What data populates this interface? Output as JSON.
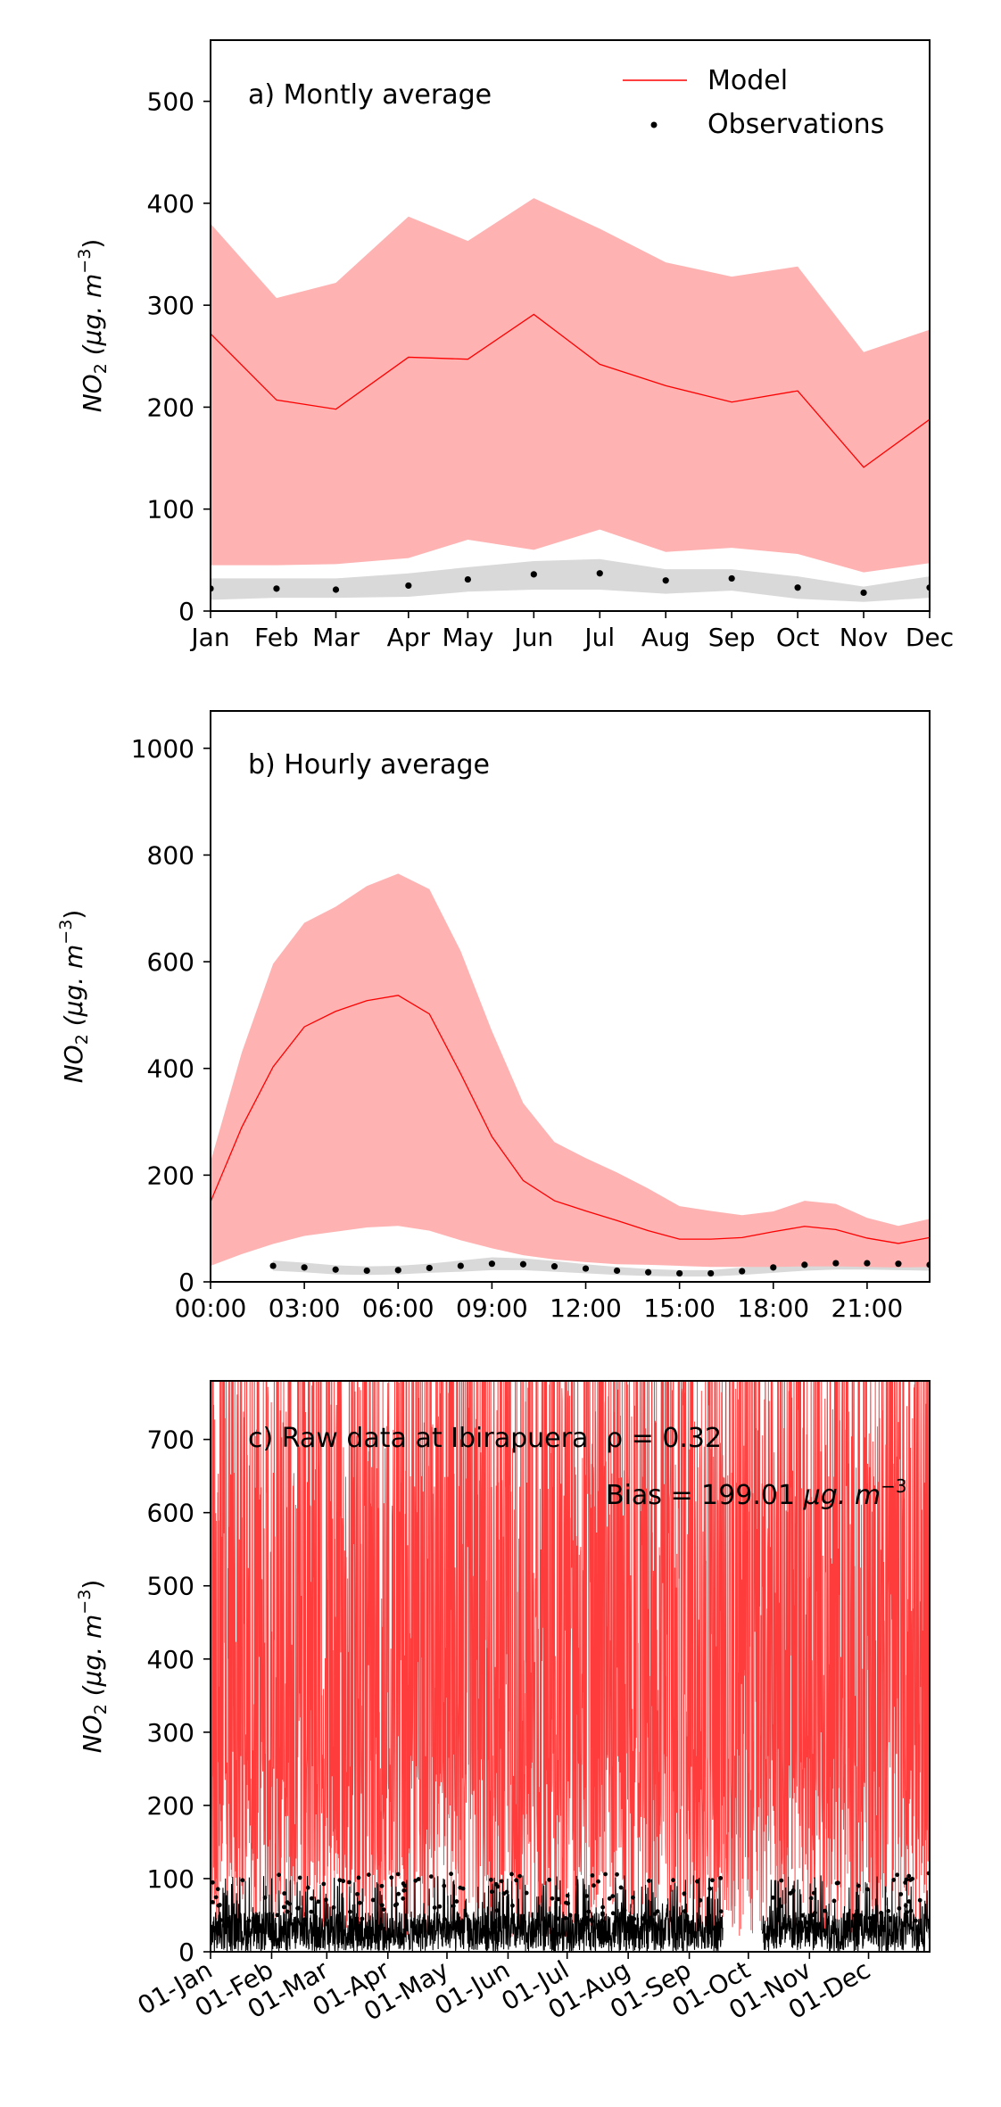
{
  "chart_data": [
    {
      "type": "area",
      "annotation": "a) Montly average",
      "ylabel_main": "NO",
      "ylabel_sub": "2",
      "ylabel_unit": " (μg. m",
      "ylabel_exp": "−3",
      "ylabel_close": ")",
      "ylim": [
        0,
        560
      ],
      "yticks": [
        0,
        100,
        200,
        300,
        400,
        500
      ],
      "categories": [
        "Jan",
        "Feb",
        "Mar",
        "Apr",
        "May",
        "Jun",
        "Jul",
        "Aug",
        "Sep",
        "Oct",
        "Nov",
        "Dec"
      ],
      "x": [
        0,
        1,
        1.9,
        3,
        3.9,
        4.9,
        5.9,
        6.9,
        7.9,
        8.9,
        9.9,
        10.9
      ],
      "xlim": [
        0,
        10.9
      ],
      "legend": {
        "placement": "top-right",
        "entries": [
          "Model",
          "Observations"
        ]
      },
      "series": [
        {
          "name": "Model",
          "values": [
            272,
            207,
            198,
            249,
            247,
            291,
            242,
            221,
            205,
            216,
            141,
            188
          ],
          "upper": [
            380,
            307,
            322,
            387,
            363,
            405,
            375,
            342,
            328,
            338,
            254,
            276
          ],
          "lower": [
            45,
            45,
            46,
            52,
            70,
            60,
            80,
            58,
            62,
            56,
            38,
            47
          ]
        },
        {
          "name": "Observations",
          "values": [
            22,
            22,
            21,
            25,
            31,
            36,
            37,
            30,
            32,
            23,
            18,
            23
          ],
          "upper": [
            32,
            32,
            32,
            37,
            43,
            49,
            51,
            41,
            41,
            34,
            24,
            34
          ],
          "lower": [
            11,
            13,
            13,
            14,
            19,
            21,
            21,
            17,
            20,
            12,
            9,
            13
          ]
        }
      ],
      "colors": {
        "model": "#ff0000",
        "model_band": "#ffb2b2",
        "obs": "#000000",
        "obs_band": "#d9d9d9"
      }
    },
    {
      "type": "area",
      "annotation": "b) Hourly average",
      "ylabel_main": "NO",
      "ylabel_sub": "2",
      "ylabel_unit": " (μg. m",
      "ylabel_exp": "−3",
      "ylabel_close": ")",
      "ylim": [
        0,
        1070
      ],
      "yticks": [
        0,
        200,
        400,
        600,
        800,
        1000
      ],
      "xlim": [
        0,
        23
      ],
      "xticks": [
        0,
        3,
        6,
        9,
        12,
        15,
        18,
        21
      ],
      "xticklabels": [
        "00:00",
        "03:00",
        "06:00",
        "09:00",
        "12:00",
        "15:00",
        "18:00",
        "21:00"
      ],
      "series": [
        {
          "name": "Model",
          "x": [
            0,
            1,
            2,
            3,
            4,
            5,
            6,
            7,
            8,
            9,
            10,
            11,
            12,
            13,
            14,
            15,
            16,
            17,
            18,
            19,
            20,
            21,
            22,
            23
          ],
          "values": [
            150,
            290,
            403,
            478,
            507,
            527,
            537,
            502,
            390,
            272,
            190,
            152,
            133,
            115,
            96,
            80,
            80,
            83,
            94,
            104,
            98,
            82,
            72,
            83
          ],
          "upper": [
            225,
            430,
            596,
            673,
            703,
            742,
            765,
            736,
            620,
            470,
            335,
            262,
            232,
            205,
            175,
            142,
            133,
            125,
            132,
            152,
            146,
            120,
            105,
            118
          ],
          "lower": [
            30,
            52,
            71,
            86,
            94,
            102,
            105,
            96,
            78,
            63,
            50,
            42,
            37,
            33,
            32,
            30,
            28,
            28,
            28,
            29,
            29,
            28,
            27,
            28
          ]
        },
        {
          "name": "Observations",
          "x": [
            2,
            3,
            4,
            5,
            6,
            7,
            8,
            9,
            10,
            11,
            12,
            13,
            14,
            15,
            16,
            17,
            18,
            19,
            20,
            21,
            22,
            23
          ],
          "values": [
            30,
            27,
            23,
            21,
            22,
            26,
            30,
            34,
            33,
            29,
            25,
            21,
            18,
            16,
            16,
            20,
            27,
            32,
            35,
            35,
            34,
            32
          ],
          "upper": [
            40,
            36,
            31,
            29,
            30,
            34,
            40,
            46,
            44,
            39,
            33,
            28,
            24,
            22,
            22,
            27,
            37,
            44,
            47,
            46,
            45,
            42
          ],
          "lower": [
            21,
            18,
            14,
            13,
            14,
            17,
            19,
            22,
            22,
            19,
            16,
            13,
            11,
            10,
            10,
            13,
            17,
            21,
            23,
            23,
            22,
            21
          ]
        }
      ]
    },
    {
      "type": "line",
      "annotation": "c) Raw data at Ibirapuera",
      "stat_r": "ρ = 0.32",
      "stat_bias": "Bias = 199.01 ",
      "stat_bias_unit": "μg. m",
      "stat_bias_exp": "−3",
      "ylabel_main": "NO",
      "ylabel_sub": "2",
      "ylabel_unit": " (μg. m",
      "ylabel_exp": "−3",
      "ylabel_close": ")",
      "ylim": [
        0,
        780
      ],
      "yticks": [
        0,
        100,
        200,
        300,
        400,
        500,
        600,
        700
      ],
      "xlim": [
        0,
        365
      ],
      "xticks": [
        0,
        31,
        59,
        90,
        120,
        151,
        181,
        212,
        243,
        273,
        304,
        334
      ],
      "xticklabels": [
        "01-Jan",
        "01-Feb",
        "01-Mar",
        "01-Apr",
        "01-May",
        "01-Jun",
        "01-Jul",
        "01-Aug",
        "01-Sep",
        "01-Oct",
        "01-Nov",
        "01-Dec"
      ],
      "obs_gap": [
        260,
        280
      ],
      "series": [
        {
          "name": "Model",
          "hourly": true,
          "typical_range": [
            0,
            780
          ]
        },
        {
          "name": "Observations",
          "hourly": true,
          "typical_range": [
            0,
            110
          ]
        }
      ]
    }
  ]
}
